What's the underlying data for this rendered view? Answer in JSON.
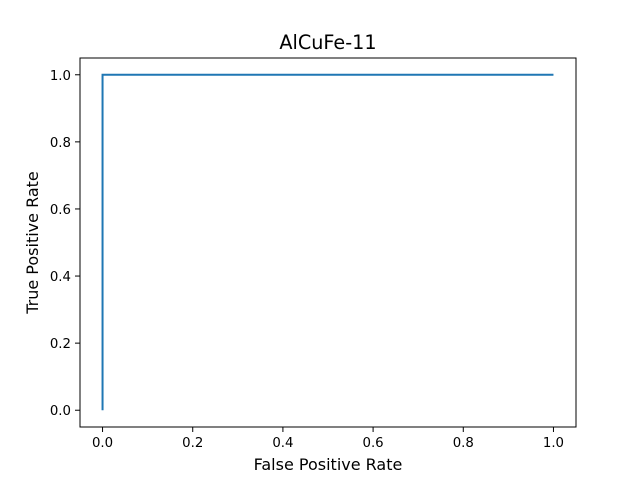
{
  "chart_data": {
    "type": "line",
    "title": "AlCuFe-11",
    "xlabel": "False Positive Rate",
    "ylabel": "True Positive Rate",
    "xlim": [
      -0.05,
      1.05
    ],
    "ylim": [
      -0.05,
      1.05
    ],
    "xticks": [
      0.0,
      0.2,
      0.4,
      0.6,
      0.8,
      1.0
    ],
    "yticks": [
      0.0,
      0.2,
      0.4,
      0.6,
      0.8,
      1.0
    ],
    "xtick_labels": [
      "0.0",
      "0.2",
      "0.4",
      "0.6",
      "0.8",
      "1.0"
    ],
    "ytick_labels": [
      "0.0",
      "0.2",
      "0.4",
      "0.6",
      "0.8",
      "1.0"
    ],
    "grid": false,
    "series": [
      {
        "color": "#1f77b4",
        "x": [
          0.0,
          0.0,
          1.0
        ],
        "y": [
          0.0,
          1.0,
          1.0
        ]
      }
    ]
  }
}
